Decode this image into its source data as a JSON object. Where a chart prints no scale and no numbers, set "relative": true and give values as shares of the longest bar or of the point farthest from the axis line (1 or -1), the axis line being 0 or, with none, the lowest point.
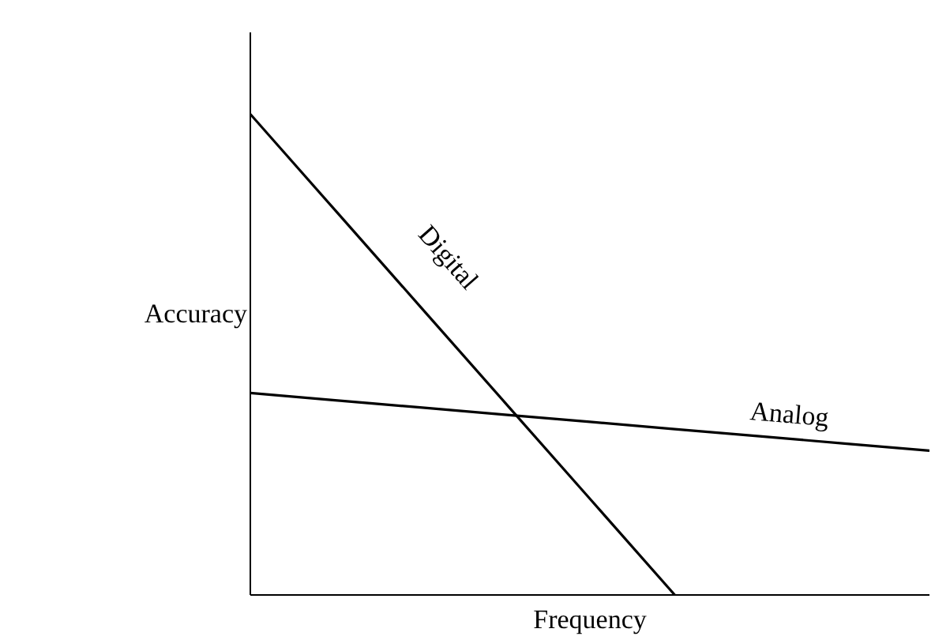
{
  "chart_data": {
    "type": "line",
    "relative": true,
    "xlabel": "Frequency",
    "ylabel": "Accuracy",
    "categories": [
      null,
      null,
      null,
      null,
      null,
      null,
      null,
      null,
      null
    ],
    "series": [
      {
        "name": "Digital",
        "color": "#000000",
        "values": [
          1,
          0.8,
          0.6,
          0.4,
          0.2,
          0,
          null,
          null,
          null
        ]
      },
      {
        "name": "Analog",
        "color": "#000000",
        "values": [
          0.42,
          0.405,
          0.39,
          0.375,
          0.36,
          0.345,
          0.33,
          0.315,
          0.3
        ]
      }
    ]
  }
}
